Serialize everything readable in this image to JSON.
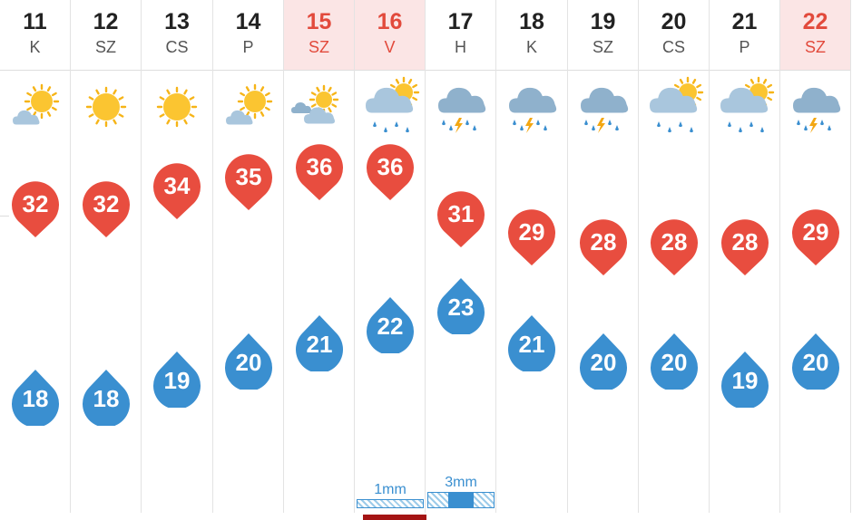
{
  "colors": {
    "high": "#e84d3f",
    "low": "#3a8fd0",
    "weekend_bg": "#fbe5e5",
    "weekend_text": "#e24a3c"
  },
  "days": [
    {
      "day": "11",
      "abbr": "K",
      "weekend": false,
      "icon": "partly-cloudy-icon",
      "high": "32",
      "low": "18",
      "precip": null
    },
    {
      "day": "12",
      "abbr": "SZ",
      "weekend": false,
      "icon": "sun-icon",
      "high": "32",
      "low": "18",
      "precip": null
    },
    {
      "day": "13",
      "abbr": "CS",
      "weekend": false,
      "icon": "sun-icon",
      "high": "34",
      "low": "19",
      "precip": null
    },
    {
      "day": "14",
      "abbr": "P",
      "weekend": false,
      "icon": "partly-cloudy-icon",
      "high": "35",
      "low": "20",
      "precip": null
    },
    {
      "day": "15",
      "abbr": "SZ",
      "weekend": true,
      "icon": "mostly-cloudy-icon",
      "high": "36",
      "low": "21",
      "precip": null
    },
    {
      "day": "16",
      "abbr": "V",
      "weekend": true,
      "icon": "sun-cloud-rain-icon",
      "high": "36",
      "low": "22",
      "precip": {
        "label": "1mm",
        "amount": 1
      }
    },
    {
      "day": "17",
      "abbr": "H",
      "weekend": false,
      "icon": "thunderstorm-icon",
      "high": "31",
      "low": "23",
      "precip": {
        "label": "3mm",
        "amount": 3
      }
    },
    {
      "day": "18",
      "abbr": "K",
      "weekend": false,
      "icon": "thunderstorm-icon",
      "high": "29",
      "low": "21",
      "precip": null
    },
    {
      "day": "19",
      "abbr": "SZ",
      "weekend": false,
      "icon": "thunderstorm-icon",
      "high": "28",
      "low": "20",
      "precip": null
    },
    {
      "day": "20",
      "abbr": "CS",
      "weekend": false,
      "icon": "sun-cloud-rain-icon",
      "high": "28",
      "low": "20",
      "precip": null
    },
    {
      "day": "21",
      "abbr": "P",
      "weekend": false,
      "icon": "sun-cloud-rain-icon",
      "high": "28",
      "low": "19",
      "precip": null
    },
    {
      "day": "22",
      "abbr": "SZ",
      "weekend": true,
      "icon": "thunderstorm-icon",
      "high": "29",
      "low": "20",
      "precip": null
    }
  ]
}
